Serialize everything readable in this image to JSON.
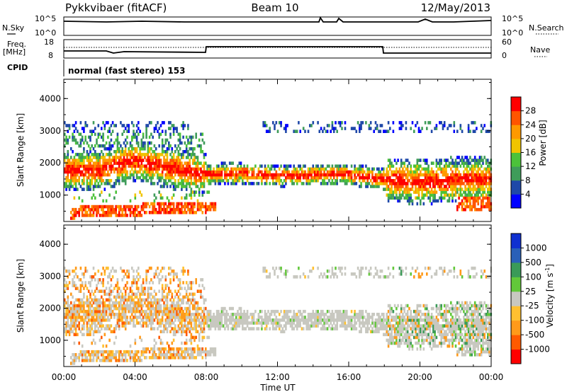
{
  "header": {
    "station": "Pykkvibaer (fitACF)",
    "beam": "Beam 10",
    "date": "12/May/2013"
  },
  "strip": {
    "nsky_label": "N.Sky",
    "nsky_ticks": [
      "10^5",
      "10^0"
    ],
    "nsearch_label": "N.Search",
    "nsearch_ticks": [
      "10^5",
      "10^0"
    ],
    "freq_label": "Freq.",
    "freq_unit": "[MHz]",
    "freq_ticks": [
      "18",
      "8"
    ],
    "nave_label": "Nave",
    "nave_ticks": [
      "60",
      "0"
    ],
    "cpid_label": "CPID",
    "cpid_value": "normal (fast stereo) 153"
  },
  "time_axis": {
    "label": "Time UT",
    "ticks": [
      "00:00",
      "04:00",
      "08:00",
      "12:00",
      "16:00",
      "20:00",
      "00:00"
    ]
  },
  "colors": {
    "power": [
      "#0000ff",
      "#1e48a8",
      "#3f9c5a",
      "#4cc23a",
      "#f0c400",
      "#ff9900",
      "#ff5500",
      "#ff0000"
    ],
    "velocity": [
      "#ff0000",
      "#ff5a00",
      "#ff9a1a",
      "#ffc030",
      "#c8c8c0",
      "#62c83a",
      "#3a9a58",
      "#2a60b8",
      "#1030d0"
    ]
  },
  "chart_data": [
    {
      "type": "heatmap",
      "title": "",
      "ylabel": "Slant Range [km]",
      "xlabel": "",
      "x_range_hours": [
        0,
        24
      ],
      "ylim": [
        180,
        4600
      ],
      "yticks": [
        "1000",
        "2000",
        "3000",
        "4000"
      ],
      "colorbar": {
        "label": "Power [dB]",
        "range": [
          0,
          32
        ],
        "ticks": [
          "4",
          "8",
          "12",
          "16",
          "20",
          "24",
          "28"
        ]
      },
      "echo_bands": [
        {
          "name": "main",
          "ranges_km": [
            [
              0,
              1700
            ],
            [
              2,
              1750
            ],
            [
              4,
              2050
            ],
            [
              6,
              1800
            ],
            [
              8,
              1600
            ],
            [
              10,
              1650
            ],
            [
              12,
              1550
            ],
            [
              14,
              1600
            ],
            [
              16,
              1600
            ],
            [
              18,
              1450
            ],
            [
              20,
              1350
            ],
            [
              22,
              1450
            ],
            [
              24,
              1450
            ]
          ]
        },
        {
          "name": "near",
          "ranges_km": [
            [
              0,
              400
            ],
            [
              2,
              450
            ],
            [
              4,
              500
            ],
            [
              6,
              550
            ],
            [
              8,
              600
            ]
          ]
        }
      ]
    },
    {
      "type": "heatmap",
      "title": "",
      "ylabel": "Slant Range [km]",
      "xlabel": "Time UT",
      "x_range_hours": [
        0,
        24
      ],
      "ylim": [
        180,
        4600
      ],
      "yticks": [
        "1000",
        "2000",
        "3000",
        "4000"
      ],
      "colorbar": {
        "label": "Velocity [m s^-1]",
        "ticks": [
          "1000",
          "500",
          "100",
          "25",
          "-25",
          "-100",
          "-500",
          "-1000"
        ]
      }
    }
  ]
}
